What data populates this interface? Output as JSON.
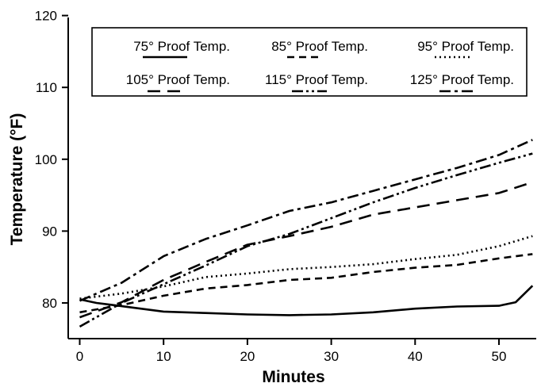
{
  "chart_data": {
    "type": "line",
    "title": "",
    "xlabel": "Minutes",
    "ylabel": "Temperature (°F)",
    "xlim": [
      0,
      55
    ],
    "ylim": [
      75,
      120
    ],
    "x_ticks": [
      0,
      10,
      20,
      30,
      40,
      50
    ],
    "y_ticks": [
      80,
      90,
      100,
      110,
      120
    ],
    "grid": false,
    "legend_position": "top",
    "series": [
      {
        "name": "75° Proof Temp.",
        "dash": "solid",
        "x": [
          0,
          2,
          4,
          6,
          8,
          10,
          15,
          20,
          25,
          30,
          35,
          40,
          45,
          50,
          52,
          54
        ],
        "y": [
          80.5,
          80.0,
          79.7,
          79.4,
          79.1,
          78.8,
          78.6,
          78.4,
          78.3,
          78.4,
          78.7,
          79.2,
          79.5,
          79.6,
          80.1,
          82.4
        ]
      },
      {
        "name": "85° Proof Temp.",
        "dash": "dash",
        "x": [
          0,
          5,
          10,
          15,
          20,
          25,
          30,
          35,
          40,
          45,
          50,
          54
        ],
        "y": [
          78.7,
          79.7,
          81.0,
          82.0,
          82.5,
          83.2,
          83.5,
          84.3,
          84.9,
          85.3,
          86.2,
          86.8
        ]
      },
      {
        "name": "95° Proof Temp.",
        "dash": "dot",
        "x": [
          0,
          5,
          10,
          15,
          20,
          25,
          30,
          35,
          40,
          45,
          50,
          54
        ],
        "y": [
          80.6,
          81.3,
          82.3,
          83.6,
          84.1,
          84.7,
          85.0,
          85.4,
          86.1,
          86.7,
          87.9,
          89.3
        ]
      },
      {
        "name": "105° Proof Temp.",
        "dash": "longdash",
        "x": [
          0,
          5,
          10,
          15,
          20,
          25,
          30,
          35,
          40,
          45,
          50,
          54
        ],
        "y": [
          78.0,
          80.1,
          83.2,
          85.7,
          88.1,
          89.3,
          90.6,
          92.3,
          93.3,
          94.3,
          95.3,
          96.8
        ]
      },
      {
        "name": "115° Proof Temp.",
        "dash": "dashdotdot",
        "x": [
          0,
          5,
          10,
          15,
          20,
          25,
          30,
          35,
          40,
          45,
          50,
          54
        ],
        "y": [
          76.7,
          80.0,
          82.6,
          85.2,
          87.9,
          89.6,
          91.8,
          94.0,
          96.0,
          97.8,
          99.5,
          100.8
        ]
      },
      {
        "name": "125° Proof Temp.",
        "dash": "dashdot",
        "x": [
          0,
          5,
          10,
          15,
          20,
          25,
          30,
          35,
          40,
          45,
          50,
          54
        ],
        "y": [
          80.3,
          82.8,
          86.5,
          88.9,
          90.8,
          92.8,
          94.0,
          95.6,
          97.2,
          98.8,
          100.6,
          102.7
        ]
      }
    ]
  }
}
